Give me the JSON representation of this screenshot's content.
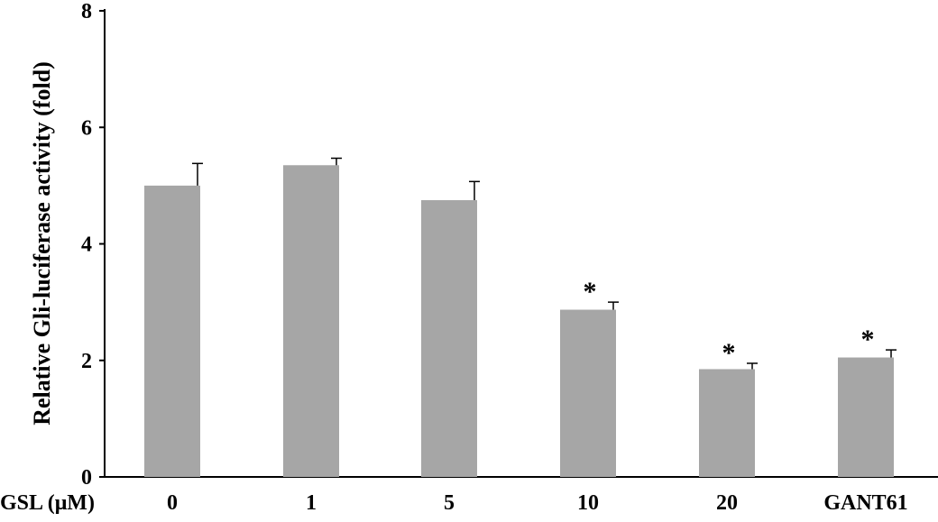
{
  "chart_data": {
    "type": "bar",
    "ylabel": "Relative Gli-luciferase activity (fold)",
    "xlabel_prefix": "GSL (μM)",
    "categories": [
      "0",
      "1",
      "5",
      "10",
      "20",
      "GANT61"
    ],
    "values": [
      5.0,
      5.35,
      4.75,
      2.87,
      1.85,
      2.05
    ],
    "errors": [
      0.38,
      0.12,
      0.32,
      0.13,
      0.1,
      0.13
    ],
    "significance": [
      "",
      "",
      "",
      "*",
      "*",
      "*"
    ],
    "ylim": [
      0,
      8
    ],
    "yticks": [
      "0",
      "2",
      "4",
      "6",
      "8"
    ],
    "grid": false,
    "bar_color": "#a6a6a6"
  }
}
